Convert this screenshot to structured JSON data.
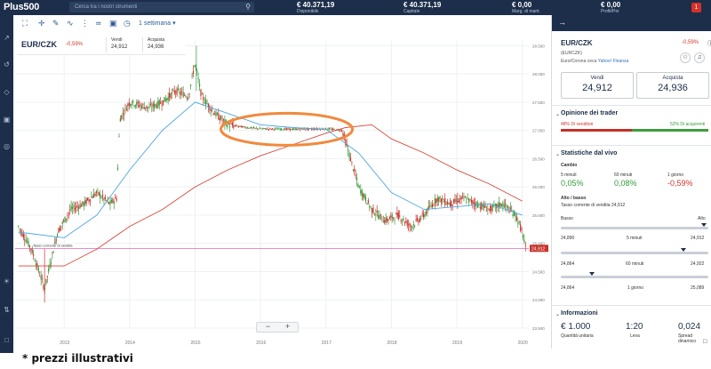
{
  "topbar": {
    "logo": "Plus500",
    "search_placeholder": "Cerca tra i nostri strumenti",
    "stats": [
      {
        "value": "€ 40.371,19",
        "label": "Disponibile"
      },
      {
        "value": "€ 40.371,19",
        "label": "Capitale"
      },
      {
        "value": "€ 0,00",
        "label": "Marg. di mant."
      },
      {
        "value": "€ 0,00",
        "label": "Profit/Per"
      }
    ],
    "notif_count": "1"
  },
  "toolbar": {
    "period": "1 settimana"
  },
  "instrument": {
    "symbol": "EUR/CZK",
    "change": "-0,59%",
    "sell_label": "Vendi",
    "sell": "24,912",
    "buy_label": "Acquista",
    "buy": "24,936"
  },
  "chart_data": {
    "type": "candlestick",
    "x_ticks": [
      "2013",
      "2014",
      "2015",
      "2016",
      "2017",
      "2018",
      "2019",
      "2020"
    ],
    "y_ticks": [
      "28.500",
      "28.000",
      "27.500",
      "27.000",
      "26.500",
      "26.000",
      "25.500",
      "25.000",
      "24.500",
      "24.000",
      "23.500"
    ],
    "ylim": [
      23.5,
      28.6
    ],
    "xlim": [
      2012.25,
      2020.1
    ],
    "current_price": "24,912",
    "current_price_label": "Tasso corrente di vendita",
    "price_path": [
      [
        2012.3,
        25.3
      ],
      [
        2012.5,
        24.9
      ],
      [
        2012.7,
        24.2
      ],
      [
        2012.9,
        25.2
      ],
      [
        2013.1,
        25.6
      ],
      [
        2013.3,
        25.7
      ],
      [
        2013.5,
        25.9
      ],
      [
        2013.7,
        25.7
      ],
      [
        2013.8,
        25.8
      ],
      [
        2013.85,
        27.2
      ],
      [
        2014.0,
        27.5
      ],
      [
        2014.3,
        27.4
      ],
      [
        2014.5,
        27.5
      ],
      [
        2014.7,
        27.7
      ],
      [
        2014.9,
        27.6
      ],
      [
        2015.0,
        28.2
      ],
      [
        2015.1,
        27.6
      ],
      [
        2015.3,
        27.3
      ],
      [
        2015.5,
        27.1
      ],
      [
        2015.8,
        27.05
      ],
      [
        2016.0,
        27.03
      ],
      [
        2016.5,
        27.02
      ],
      [
        2017.0,
        27.03
      ],
      [
        2017.25,
        27.0
      ],
      [
        2017.35,
        26.6
      ],
      [
        2017.5,
        26.0
      ],
      [
        2017.7,
        25.6
      ],
      [
        2017.9,
        25.4
      ],
      [
        2018.1,
        25.5
      ],
      [
        2018.3,
        25.3
      ],
      [
        2018.5,
        25.5
      ],
      [
        2018.7,
        25.8
      ],
      [
        2018.9,
        25.7
      ],
      [
        2019.1,
        25.8
      ],
      [
        2019.3,
        25.7
      ],
      [
        2019.5,
        25.6
      ],
      [
        2019.7,
        25.7
      ],
      [
        2019.9,
        25.5
      ],
      [
        2020.0,
        25.2
      ],
      [
        2020.05,
        24.91
      ]
    ],
    "ma_short": [
      [
        2012.3,
        25.2
      ],
      [
        2013.0,
        25.1
      ],
      [
        2013.5,
        25.5
      ],
      [
        2014.0,
        26.3
      ],
      [
        2014.5,
        27.0
      ],
      [
        2015.0,
        27.5
      ],
      [
        2015.5,
        27.3
      ],
      [
        2016.0,
        27.1
      ],
      [
        2016.5,
        27.05
      ],
      [
        2017.0,
        27.02
      ],
      [
        2017.5,
        26.6
      ],
      [
        2018.0,
        25.9
      ],
      [
        2018.5,
        25.6
      ],
      [
        2019.0,
        25.65
      ],
      [
        2019.5,
        25.7
      ],
      [
        2020.0,
        25.5
      ]
    ],
    "ma_long": [
      [
        2012.3,
        24.6
      ],
      [
        2013.0,
        24.6
      ],
      [
        2013.5,
        24.9
      ],
      [
        2014.0,
        25.3
      ],
      [
        2014.5,
        25.6
      ],
      [
        2015.0,
        26.0
      ],
      [
        2015.5,
        26.3
      ],
      [
        2016.0,
        26.55
      ],
      [
        2016.5,
        26.75
      ],
      [
        2017.0,
        26.95
      ],
      [
        2017.3,
        27.05
      ],
      [
        2017.7,
        27.1
      ],
      [
        2018.0,
        26.85
      ],
      [
        2018.5,
        26.6
      ],
      [
        2019.0,
        26.3
      ],
      [
        2019.5,
        26.05
      ],
      [
        2020.0,
        25.75
      ]
    ]
  },
  "panel": {
    "symbol": "EUR/CZK",
    "change": "-0,59%",
    "code": "(EURCZK)",
    "desc_prefix": "Euro/Corona ceca",
    "desc_link": "Yahoo! Finanza",
    "sell_label": "Vendi",
    "sell": "24,912",
    "buy_label": "Acquista",
    "buy": "24,936",
    "sentiment_title": "Opinione dei trader",
    "sellers": "48% Di venditori",
    "buyers": "52% Di acquirenti",
    "sellers_pct": 48,
    "live_title": "Statistiche dal vivo",
    "change_title": "Cambio",
    "changes": [
      {
        "label": "5 minuti",
        "value": "0,05%"
      },
      {
        "label": "60 minuti",
        "value": "0,08%"
      },
      {
        "label": "1 giorno",
        "value": "-0,59%"
      }
    ],
    "highlow_title": "Alto / basso",
    "rate_text": "Tasso corrente di vendita 24,912",
    "low_label": "Basso",
    "high_label": "Alto",
    "ranges": [
      {
        "low": "24,890",
        "label": "5 minuti",
        "high": "24,912",
        "pos": 0.97
      },
      {
        "low": "24,864",
        "label": "60 minuti",
        "high": "24,922",
        "pos": 0.83
      },
      {
        "low": "24,864",
        "label": "1 giorno",
        "high": "25,089",
        "pos": 0.21
      }
    ],
    "info_title": "Informazioni",
    "info": [
      {
        "value": "€ 1.000",
        "label": "Quantità unitaria"
      },
      {
        "value": "1:20",
        "label": "Leva"
      },
      {
        "value": "0,024",
        "label": "Spread dinamico"
      }
    ]
  },
  "footnote": "* prezzi illustrativi"
}
